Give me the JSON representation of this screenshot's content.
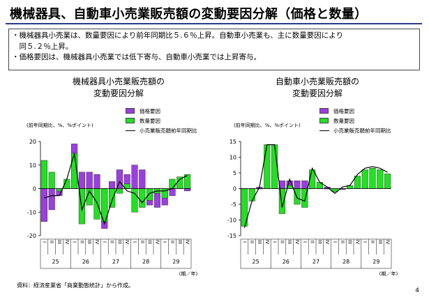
{
  "page": {
    "title": "機械器具、自動車小売業販売額の変動要因分解（価格と数量）",
    "bullets": [
      "・機械器具小売業は、数量要因により前年同期比５.６％上昇。自動車小売業も、主に数量要因により",
      "　同５.２％上昇。",
      "・価格要因は、機械器具小売業では低下寄与、自動車小売業では上昇寄与。"
    ],
    "source": "資料：経済産業省「商業動態統計」から作成。",
    "page_number": "4"
  },
  "legend": {
    "price": "価格要因",
    "quantity": "数量要因",
    "line": "小売業販売額前年同期比"
  },
  "colors": {
    "price": "#9b3fe0",
    "quantity": "#22e022",
    "line": "#000000"
  },
  "chart_data": [
    {
      "type": "bar",
      "title_lines": [
        "機械器具小売業販売額の",
        "変動要因分解"
      ],
      "unit_label": "(前年同期比、%、%ポイント)",
      "xaxis_note": "(期／年)",
      "quarters": [
        "I",
        "II",
        "III",
        "IV",
        "I",
        "II",
        "III",
        "IV",
        "I",
        "II",
        "III",
        "IV",
        "I",
        "II",
        "III",
        "IV",
        "I",
        "II",
        "III",
        "IV"
      ],
      "years": [
        "25",
        "26",
        "27",
        "28",
        "29"
      ],
      "ylim": [
        -20,
        20
      ],
      "yticks": [
        -20,
        -10,
        0,
        10,
        20
      ],
      "series": [
        {
          "name": "価格要因",
          "values": [
            -14,
            -9,
            -3,
            1,
            19,
            7,
            7,
            6,
            -17,
            3,
            8,
            6,
            10,
            8,
            -7,
            -8,
            -7,
            -3,
            2,
            -1
          ]
        },
        {
          "name": "数量要因",
          "values": [
            12,
            7,
            -1,
            4,
            15,
            -15,
            -7,
            -13,
            -14,
            -8,
            -2,
            2,
            -10,
            -8,
            -5,
            -2,
            -4,
            4,
            5,
            6
          ]
        },
        {
          "name": "小売業販売額前年同期比",
          "values": [
            -4,
            -3,
            -3,
            4,
            15,
            -9,
            -1,
            -6,
            -15,
            -5,
            3,
            -1,
            -2,
            -6,
            -2,
            -1,
            -1,
            0,
            4,
            5.6
          ]
        }
      ]
    },
    {
      "type": "bar",
      "title_lines": [
        "自動車小売業販売額の",
        "変動要因分解"
      ],
      "unit_label": "(前年同期比、%、%ポイント)",
      "xaxis_note": "(期／年)",
      "quarters": [
        "I",
        "II",
        "III",
        "IV",
        "I",
        "II",
        "III",
        "IV",
        "I",
        "II",
        "III",
        "IV",
        "I",
        "II",
        "III",
        "IV",
        "I",
        "II",
        "III",
        "IV"
      ],
      "years": [
        "25",
        "26",
        "27",
        "28",
        "29"
      ],
      "ylim": [
        -15,
        15
      ],
      "yticks": [
        -15,
        -10,
        -5,
        0,
        5,
        10,
        15
      ],
      "series": [
        {
          "name": "価格要因",
          "values": [
            -0.5,
            -0.5,
            0.5,
            0.5,
            0.5,
            2.5,
            2.5,
            2.5,
            2.5,
            0.5,
            0.5,
            0.5,
            -0.5,
            -0.3,
            0.2,
            0.5,
            0.6,
            0.6,
            0.5,
            0.5
          ]
        },
        {
          "name": "数量要因",
          "values": [
            -12,
            -4,
            0,
            14,
            14,
            -8,
            1,
            -5,
            -6,
            6,
            2,
            0,
            -1,
            0,
            1,
            4,
            6,
            6.5,
            6,
            4.7
          ]
        },
        {
          "name": "小売業販売額前年同期比",
          "values": [
            -12.5,
            -4,
            0.5,
            14,
            14,
            -6,
            3,
            -3,
            -4,
            6.5,
            2,
            0.5,
            -1.5,
            0.5,
            1,
            4.5,
            6.5,
            7,
            6.5,
            5.2
          ]
        }
      ]
    }
  ]
}
